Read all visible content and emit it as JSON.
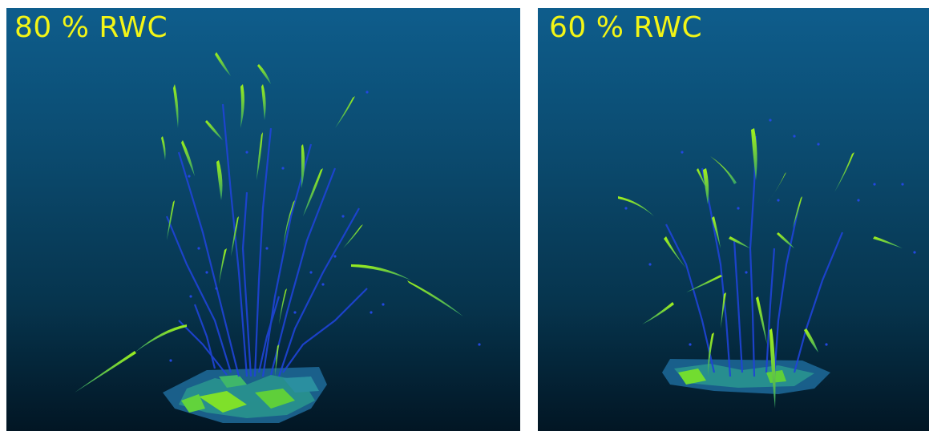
{
  "panels": [
    {
      "label": "80 % RWC"
    },
    {
      "label": "60 % RWC"
    }
  ]
}
